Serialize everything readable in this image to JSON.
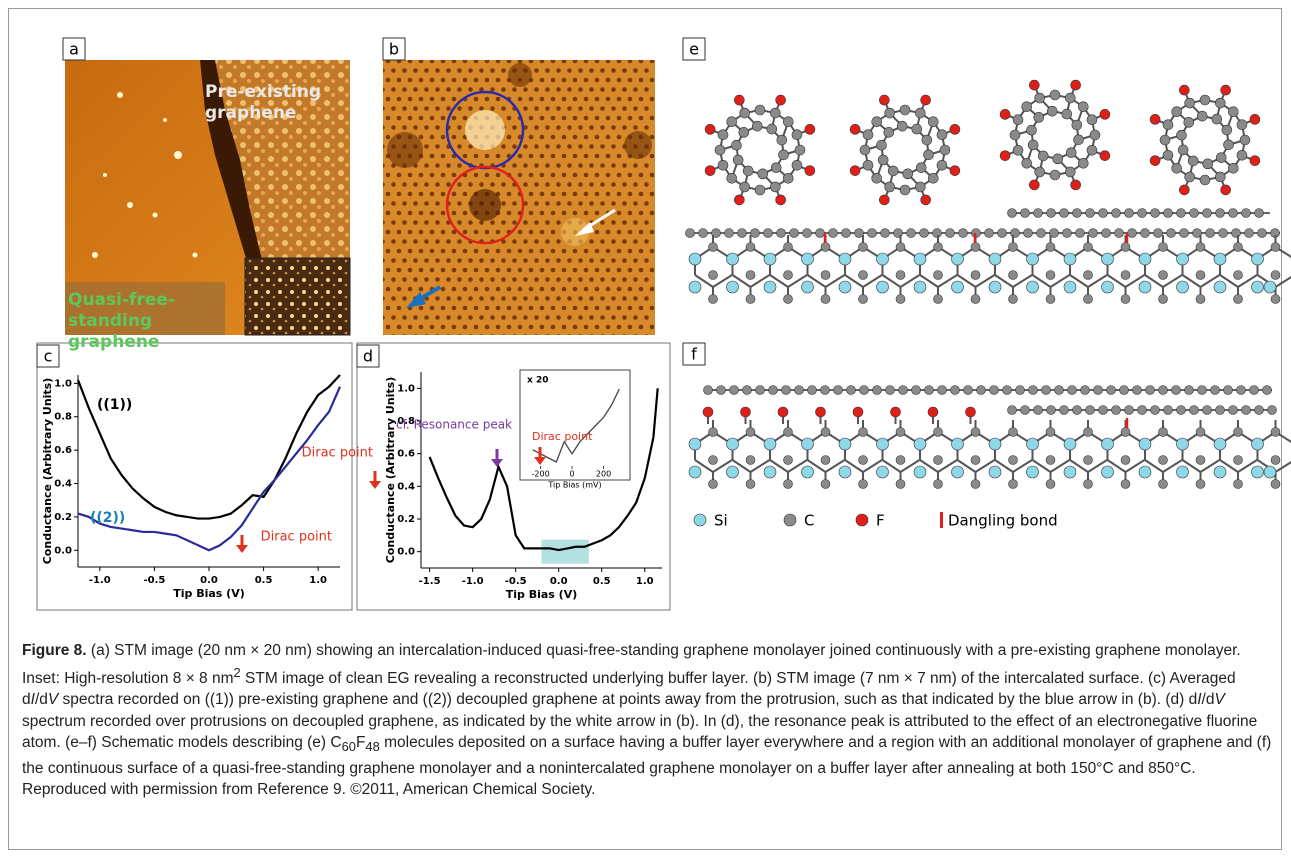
{
  "panels": [
    {
      "label": "a",
      "texts": [
        "Pre-existing graphene",
        "Quasi-free-standing graphene"
      ]
    },
    {
      "label": "b"
    },
    {
      "label": "c"
    },
    {
      "label": "d"
    },
    {
      "label": "e"
    },
    {
      "label": "f"
    }
  ],
  "legend": [
    "Si",
    "C",
    "F",
    "Dangling bond"
  ],
  "chart_data": [
    {
      "type": "line",
      "x_label": "Tip Bias (V)",
      "y_label": "Conductance (Arbitrary Units)",
      "x": [
        -1.2,
        -1.1,
        -1.0,
        -0.9,
        -0.8,
        -0.7,
        -0.6,
        -0.5,
        -0.4,
        -0.3,
        -0.2,
        -0.1,
        0.0,
        0.1,
        0.2,
        0.3,
        0.4,
        0.5,
        0.6,
        0.7,
        0.8,
        0.9,
        1.0,
        1.1,
        1.2
      ],
      "series": [
        {
          "name": "((1))",
          "color": "#000000",
          "values": [
            1.02,
            0.85,
            0.7,
            0.55,
            0.45,
            0.37,
            0.31,
            0.26,
            0.23,
            0.21,
            0.2,
            0.19,
            0.19,
            0.2,
            0.22,
            0.27,
            0.33,
            0.32,
            0.42,
            0.55,
            0.7,
            0.83,
            0.93,
            0.98,
            1.05
          ]
        },
        {
          "name": "((2))",
          "color": "#2b2a9b",
          "values": [
            0.22,
            0.2,
            0.16,
            0.14,
            0.13,
            0.12,
            0.11,
            0.11,
            0.1,
            0.09,
            0.06,
            0.03,
            0.0,
            0.03,
            0.08,
            0.15,
            0.25,
            0.35,
            0.42,
            0.5,
            0.58,
            0.66,
            0.75,
            0.83,
            0.98
          ]
        }
      ],
      "xlim": [
        -1.2,
        1.2
      ],
      "ylim": [
        -0.1,
        1.05
      ],
      "xticks": [
        {
          "value": -1.0,
          "label": "-1.0"
        },
        -0.5,
        {
          "value": 0,
          "label": "0.0"
        },
        0.5,
        {
          "value": 1,
          "label": "1.0"
        }
      ],
      "yticks": [
        {
          "value": 0,
          "label": "0.0"
        },
        0.2,
        0.4,
        0.6,
        0.8,
        {
          "value": 1,
          "label": "1.0"
        }
      ],
      "annotations": [
        "Dirac point",
        "Dirac point"
      ]
    },
    {
      "type": "line",
      "x_label": "Tip Bias (V)",
      "y_label": "Conductance (Arbitrary Units)",
      "x": [
        -1.5,
        -1.4,
        -1.3,
        -1.2,
        -1.1,
        -1.0,
        -0.9,
        -0.8,
        -0.7,
        -0.6,
        -0.5,
        -0.4,
        -0.3,
        -0.2,
        -0.1,
        0.0,
        0.1,
        0.2,
        0.3,
        0.4,
        0.5,
        0.6,
        0.7,
        0.8,
        0.9,
        1.0,
        1.1,
        1.15
      ],
      "series": [
        {
          "color": "#000000",
          "values": [
            0.58,
            0.45,
            0.33,
            0.22,
            0.16,
            0.15,
            0.2,
            0.32,
            0.52,
            0.4,
            0.1,
            0.02,
            0.02,
            0.02,
            0.02,
            0.01,
            0.02,
            0.03,
            0.03,
            0.05,
            0.07,
            0.1,
            0.15,
            0.22,
            0.3,
            0.45,
            0.7,
            1.0
          ]
        }
      ],
      "xlim": [
        -1.6,
        1.2
      ],
      "ylim": [
        -0.1,
        1.1
      ],
      "xticks": [
        {
          "value": -1.5,
          "label": "-1.5"
        },
        {
          "value": -1.0,
          "label": "-1.0"
        },
        -0.5,
        {
          "value": 0,
          "label": "0.0"
        },
        0.5,
        {
          "value": 1,
          "label": "1.0"
        }
      ],
      "yticks": [
        {
          "value": 0,
          "label": "0.0"
        },
        0.2,
        0.4,
        0.6,
        0.8,
        {
          "value": 1,
          "label": "1.0"
        }
      ],
      "highlight": [
        -0.2,
        0.35
      ],
      "annotations": [
        "cf. Resonance peak"
      ],
      "inset": {
        "label": "x 20",
        "x_label": "Tip Bias (mV)",
        "x": [
          -250,
          -200,
          -150,
          -100,
          -50,
          0,
          50,
          100,
          150,
          200,
          250,
          300
        ],
        "values": [
          0.2,
          0.15,
          0.1,
          0.05,
          0.3,
          0.15,
          0.3,
          0.4,
          0.5,
          0.6,
          0.75,
          0.95
        ],
        "xlim": [
          -280,
          330
        ],
        "ylim": [
          0,
          1
        ],
        "xticks": [
          -200,
          0,
          200
        ],
        "annotations": [
          "Dirac point"
        ]
      }
    }
  ],
  "caption": [
    "Figure 8.",
    " (a) STM image (20 nm × 20 nm) showing an intercalation-induced quasi-free-standing graphene monolayer joined continuously with a pre-existing graphene monolayer. Inset: High-resolution 8 × 8 nm",
    "2",
    " STM image of clean EG revealing a reconstructed underlying buffer layer. (b) STM image (7 nm × 7 nm) of the intercalated surface. (c) Averaged d",
    "I",
    "/d",
    "V",
    " spectra recorded on ((1)) pre-existing graphene and ((2)) decoupled graphene at points away from the protrusion, such as that indicated by the blue arrow in (b). (d) d",
    "I",
    "/d",
    "V",
    " spectrum recorded over protrusions on decoupled graphene, as indicated by the white arrow in (b). In (d), the resonance peak is attributed to the effect of an electronegative fluorine atom. (e–f) Schematic models describing (e) C",
    "60",
    "F",
    "48",
    " molecules deposited on a surface having a buffer layer everywhere and a region with an additional monolayer of graphene and (f) the continuous surface of a quasi-free-standing graphene monolayer and a nonintercalated graphene monolayer on a buffer layer after annealing at both 150°C and 850°C. Reproduced with permission from Reference 9. ©2011, American Chemical Society."
  ]
}
